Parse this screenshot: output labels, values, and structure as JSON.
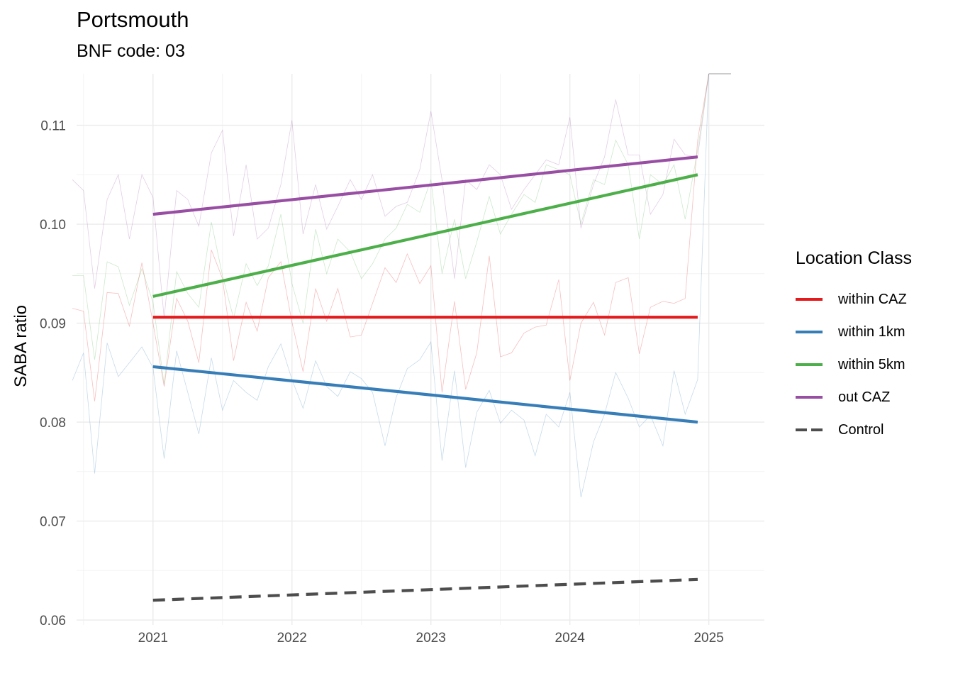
{
  "chart_data": {
    "type": "line",
    "title": "Portsmouth",
    "subtitle": "BNF code: 03",
    "ylabel": "SABA ratio",
    "xlabel": "",
    "xlim": [
      2020.45,
      2025.4
    ],
    "ylim": [
      0.0595,
      0.1152
    ],
    "x_ticks": [
      2021,
      2022,
      2023,
      2024,
      2025
    ],
    "y_ticks": [
      0.06,
      0.07,
      0.08,
      0.09,
      0.1,
      0.11
    ],
    "y_tick_labels": [
      "0.06",
      "0.07",
      "0.08",
      "0.09",
      "0.10",
      "0.11"
    ],
    "grid": true,
    "legend": {
      "title": "Location Class",
      "position": "right",
      "items": [
        {
          "label": "within CAZ",
          "color": "#E41A1C",
          "dash": false
        },
        {
          "label": "within 1km",
          "color": "#377EB8",
          "dash": false
        },
        {
          "label": "within 5km",
          "color": "#4DAF4A",
          "dash": false
        },
        {
          "label": "out CAZ",
          "color": "#984EA3",
          "dash": false
        },
        {
          "label": "Control",
          "color": "#4D4D4D",
          "dash": true
        }
      ]
    },
    "trend_lines": [
      {
        "name": "within CAZ",
        "color": "#E41A1C",
        "dash": false,
        "x": [
          2021.0,
          2024.92
        ],
        "y": [
          0.0906,
          0.0906
        ]
      },
      {
        "name": "within 1km",
        "color": "#377EB8",
        "dash": false,
        "x": [
          2021.0,
          2024.92
        ],
        "y": [
          0.0856,
          0.08
        ]
      },
      {
        "name": "within 5km",
        "color": "#4DAF4A",
        "dash": false,
        "x": [
          2021.0,
          2024.92
        ],
        "y": [
          0.0927,
          0.105
        ]
      },
      {
        "name": "out CAZ",
        "color": "#984EA3",
        "dash": false,
        "x": [
          2021.0,
          2024.92
        ],
        "y": [
          0.101,
          0.1068
        ]
      },
      {
        "name": "Control",
        "color": "#4D4D4D",
        "dash": true,
        "x": [
          2021.0,
          2024.92
        ],
        "y": [
          0.062,
          0.0641
        ]
      }
    ],
    "raw_series": [
      {
        "name": "within CAZ",
        "color": "#E41A1C",
        "x": [
          2020.42,
          2020.5,
          2020.58,
          2020.67,
          2020.75,
          2020.83,
          2020.92,
          2021.0,
          2021.08,
          2021.17,
          2021.25,
          2021.33,
          2021.42,
          2021.5,
          2021.58,
          2021.67,
          2021.75,
          2021.83,
          2021.92,
          2022.0,
          2022.08,
          2022.17,
          2022.25,
          2022.33,
          2022.42,
          2022.5,
          2022.58,
          2022.67,
          2022.75,
          2022.83,
          2022.92,
          2023.0,
          2023.08,
          2023.17,
          2023.25,
          2023.33,
          2023.42,
          2023.5,
          2023.58,
          2023.67,
          2023.75,
          2023.83,
          2023.92,
          2024.0,
          2024.08,
          2024.17,
          2024.25,
          2024.33,
          2024.42,
          2024.5,
          2024.58,
          2024.67,
          2024.75,
          2024.83,
          2024.92,
          2025.0
        ],
        "y": [
          0.0915,
          0.0912,
          0.0821,
          0.0931,
          0.093,
          0.0897,
          0.0961,
          0.09,
          0.0836,
          0.0925,
          0.0902,
          0.086,
          0.0974,
          0.0945,
          0.0862,
          0.0921,
          0.0892,
          0.0946,
          0.0962,
          0.0901,
          0.0851,
          0.0935,
          0.0902,
          0.0935,
          0.0886,
          0.0888,
          0.092,
          0.0956,
          0.0941,
          0.097,
          0.094,
          0.0958,
          0.083,
          0.0922,
          0.0833,
          0.087,
          0.0968,
          0.0866,
          0.087,
          0.089,
          0.0896,
          0.0898,
          0.0944,
          0.0842,
          0.09,
          0.0921,
          0.0888,
          0.0941,
          0.0946,
          0.0869,
          0.0916,
          0.0922,
          0.092,
          0.0925,
          0.1085,
          0.1152
        ]
      },
      {
        "name": "within 1km",
        "color": "#377EB8",
        "x": [
          2020.42,
          2020.5,
          2020.58,
          2020.67,
          2020.75,
          2020.83,
          2020.92,
          2021.0,
          2021.08,
          2021.17,
          2021.25,
          2021.33,
          2021.42,
          2021.5,
          2021.58,
          2021.67,
          2021.75,
          2021.83,
          2021.92,
          2022.0,
          2022.08,
          2022.17,
          2022.25,
          2022.33,
          2022.42,
          2022.5,
          2022.58,
          2022.67,
          2022.75,
          2022.83,
          2022.92,
          2023.0,
          2023.08,
          2023.17,
          2023.25,
          2023.33,
          2023.42,
          2023.5,
          2023.58,
          2023.67,
          2023.75,
          2023.83,
          2023.92,
          2024.0,
          2024.08,
          2024.17,
          2024.25,
          2024.33,
          2024.42,
          2024.5,
          2024.58,
          2024.67,
          2024.75,
          2024.83,
          2024.92,
          2025.0
        ],
        "y": [
          0.0842,
          0.087,
          0.0748,
          0.088,
          0.0846,
          0.086,
          0.0876,
          0.0855,
          0.0763,
          0.0872,
          0.083,
          0.0788,
          0.0865,
          0.0812,
          0.0842,
          0.083,
          0.0822,
          0.0856,
          0.0879,
          0.0843,
          0.0814,
          0.0862,
          0.0836,
          0.0826,
          0.0851,
          0.0844,
          0.083,
          0.0776,
          0.0825,
          0.0854,
          0.0863,
          0.0881,
          0.0761,
          0.0852,
          0.0754,
          0.081,
          0.0832,
          0.0799,
          0.0812,
          0.0802,
          0.0766,
          0.0808,
          0.0795,
          0.083,
          0.0724,
          0.078,
          0.0808,
          0.085,
          0.0824,
          0.0795,
          0.0807,
          0.0776,
          0.0852,
          0.0808,
          0.0843,
          0.1152
        ]
      },
      {
        "name": "within 5km",
        "color": "#4DAF4A",
        "x": [
          2020.42,
          2020.5,
          2020.58,
          2020.67,
          2020.75,
          2020.83,
          2020.92,
          2021.0,
          2021.08,
          2021.17,
          2021.25,
          2021.33,
          2021.42,
          2021.5,
          2021.58,
          2021.67,
          2021.75,
          2021.83,
          2021.92,
          2022.0,
          2022.08,
          2022.17,
          2022.25,
          2022.33,
          2022.42,
          2022.5,
          2022.58,
          2022.67,
          2022.75,
          2022.83,
          2022.92,
          2023.0,
          2023.08,
          2023.17,
          2023.25,
          2023.33,
          2023.42,
          2023.5,
          2023.58,
          2023.67,
          2023.75,
          2023.83,
          2023.92,
          2024.0,
          2024.08,
          2024.17,
          2024.25,
          2024.33,
          2024.42,
          2024.5,
          2024.58,
          2024.67,
          2024.75,
          2024.83,
          2024.92,
          2025.0
        ],
        "y": [
          0.0948,
          0.0948,
          0.0863,
          0.0962,
          0.0957,
          0.0918,
          0.0955,
          0.0921,
          0.0838,
          0.0952,
          0.093,
          0.0916,
          0.1002,
          0.0948,
          0.0905,
          0.096,
          0.0938,
          0.0958,
          0.101,
          0.094,
          0.09,
          0.0995,
          0.095,
          0.0985,
          0.0972,
          0.0945,
          0.096,
          0.0985,
          0.0996,
          0.102,
          0.1012,
          0.1045,
          0.095,
          0.1005,
          0.0945,
          0.0982,
          0.1028,
          0.099,
          0.101,
          0.103,
          0.1022,
          0.106,
          0.1055,
          0.105,
          0.1,
          0.1045,
          0.104,
          0.1085,
          0.106,
          0.0985,
          0.105,
          0.104,
          0.106,
          0.1005,
          0.1075,
          0.1152
        ]
      },
      {
        "name": "out CAZ",
        "color": "#984EA3",
        "x": [
          2020.42,
          2020.5,
          2020.58,
          2020.67,
          2020.75,
          2020.83,
          2020.92,
          2021.0,
          2021.08,
          2021.17,
          2021.25,
          2021.33,
          2021.42,
          2021.5,
          2021.58,
          2021.67,
          2021.75,
          2021.83,
          2021.92,
          2022.0,
          2022.08,
          2022.17,
          2022.25,
          2022.33,
          2022.42,
          2022.5,
          2022.58,
          2022.67,
          2022.75,
          2022.83,
          2022.92,
          2023.0,
          2023.08,
          2023.17,
          2023.25,
          2023.33,
          2023.42,
          2023.5,
          2023.58,
          2023.67,
          2023.75,
          2023.83,
          2023.92,
          2024.0,
          2024.08,
          2024.17,
          2024.25,
          2024.33,
          2024.42,
          2024.5,
          2024.58,
          2024.67,
          2024.75,
          2024.83,
          2024.92,
          2025.0
        ],
        "y": [
          0.1045,
          0.1034,
          0.0935,
          0.1025,
          0.105,
          0.0985,
          0.105,
          0.1027,
          0.0905,
          0.1034,
          0.1025,
          0.0998,
          0.1072,
          0.1095,
          0.0988,
          0.106,
          0.0985,
          0.0996,
          0.104,
          0.1105,
          0.099,
          0.104,
          0.0995,
          0.1018,
          0.1045,
          0.1025,
          0.105,
          0.1008,
          0.1018,
          0.1022,
          0.1055,
          0.1114,
          0.1045,
          0.0945,
          0.1045,
          0.1035,
          0.106,
          0.105,
          0.1015,
          0.1035,
          0.105,
          0.1065,
          0.106,
          0.1108,
          0.0996,
          0.104,
          0.1068,
          0.1126,
          0.107,
          0.107,
          0.101,
          0.103,
          0.1086,
          0.107,
          0.1068,
          0.1152
        ]
      }
    ]
  }
}
